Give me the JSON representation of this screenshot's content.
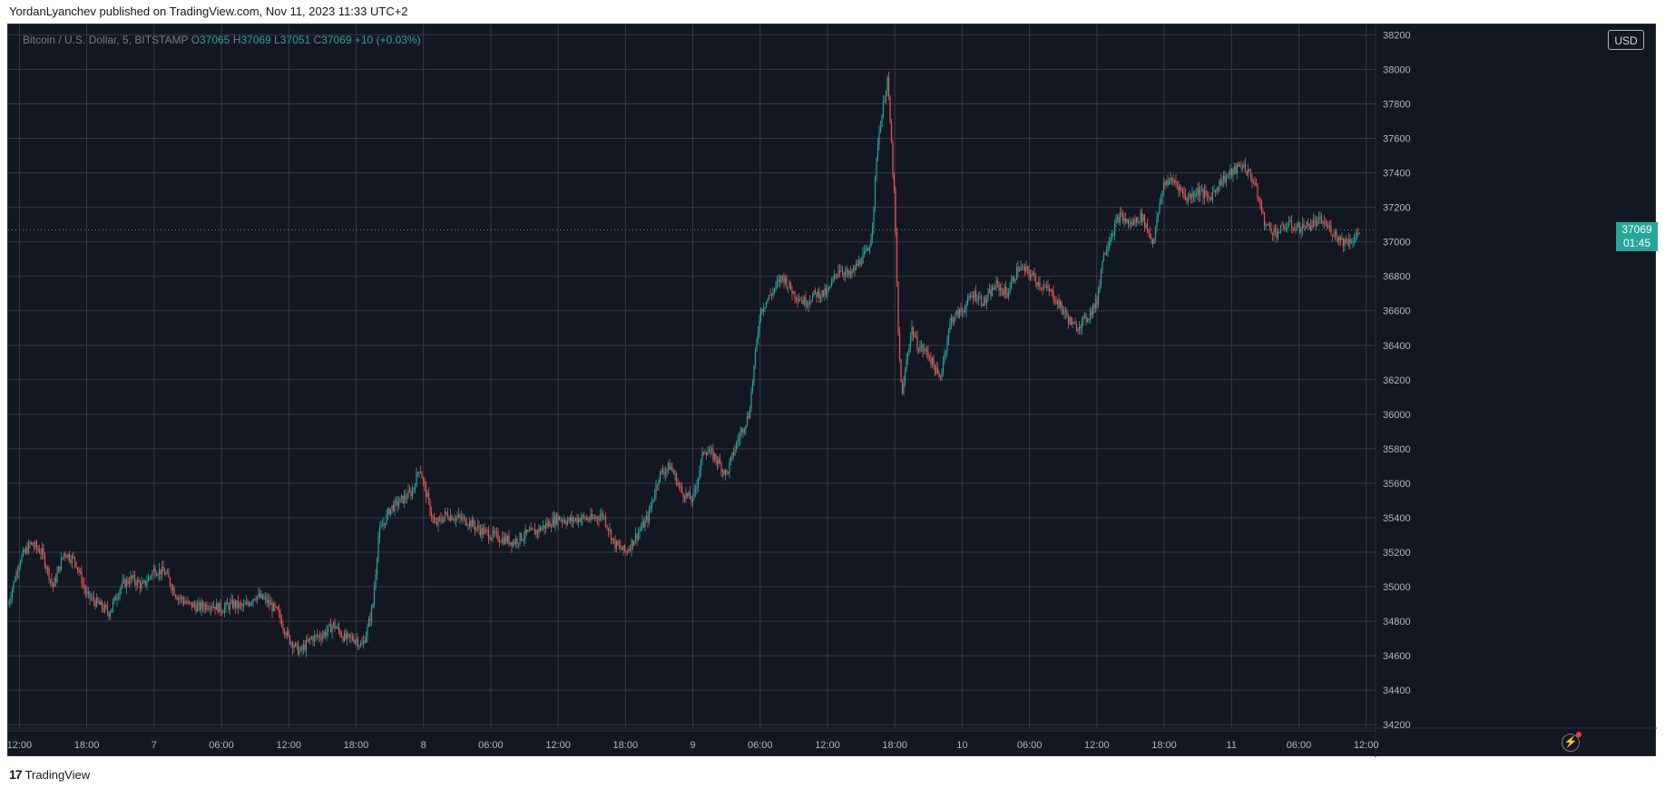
{
  "header": {
    "published_text": "YordanLyanchev published on TradingView.com, Nov 11, 2023 11:33 UTC+2"
  },
  "legend": {
    "symbol": "Bitcoin / U.S. Dollar, 5, BITSTAMP",
    "o_label": "O",
    "o_value": "37065",
    "h_label": "H",
    "h_value": "37069",
    "l_label": "L",
    "l_value": "37051",
    "c_label": "C",
    "c_value": "37069",
    "change": "+10 (+0.03%)"
  },
  "toolbar": {
    "currency": "USD"
  },
  "price_tag": {
    "price": "37069",
    "countdown": "01:45"
  },
  "footer": {
    "logo_mark": "17",
    "brand": "TradingView"
  },
  "colors": {
    "background": "#131722",
    "up": "#26a69a",
    "down": "#ef5350",
    "grid": "#363a45",
    "text": "#b2b5be"
  },
  "icons": {
    "replay": "lightning-bolt-icon"
  },
  "chart_data": {
    "type": "line",
    "title": "Bitcoin / U.S. Dollar, 5, BITSTAMP",
    "interval": "5",
    "exchange": "BITSTAMP",
    "y_range": [
      34180,
      38260
    ],
    "y_ticks": [
      34200,
      34400,
      34600,
      34800,
      35000,
      35200,
      35400,
      35600,
      35800,
      36000,
      36200,
      36400,
      36600,
      36800,
      37000,
      37200,
      37400,
      37600,
      37800,
      38000,
      38200
    ],
    "x_range": [
      "2023-11-06 11:00",
      "2023-11-11 12:50"
    ],
    "x_ticks": [
      {
        "label": "12:00",
        "t": "2023-11-06 12:00"
      },
      {
        "label": "18:00",
        "t": "2023-11-06 18:00"
      },
      {
        "label": "7",
        "t": "2023-11-07 00:00"
      },
      {
        "label": "06:00",
        "t": "2023-11-07 06:00"
      },
      {
        "label": "12:00",
        "t": "2023-11-07 12:00"
      },
      {
        "label": "18:00",
        "t": "2023-11-07 18:00"
      },
      {
        "label": "8",
        "t": "2023-11-08 00:00"
      },
      {
        "label": "06:00",
        "t": "2023-11-08 06:00"
      },
      {
        "label": "12:00",
        "t": "2023-11-08 12:00"
      },
      {
        "label": "18:00",
        "t": "2023-11-08 18:00"
      },
      {
        "label": "9",
        "t": "2023-11-09 00:00"
      },
      {
        "label": "06:00",
        "t": "2023-11-09 06:00"
      },
      {
        "label": "12:00",
        "t": "2023-11-09 12:00"
      },
      {
        "label": "18:00",
        "t": "2023-11-09 18:00"
      },
      {
        "label": "10",
        "t": "2023-11-10 00:00"
      },
      {
        "label": "06:00",
        "t": "2023-11-10 06:00"
      },
      {
        "label": "12:00",
        "t": "2023-11-10 12:00"
      },
      {
        "label": "18:00",
        "t": "2023-11-10 18:00"
      },
      {
        "label": "11",
        "t": "2023-11-11 00:00"
      },
      {
        "label": "06:00",
        "t": "2023-11-11 06:00"
      },
      {
        "label": "12:00",
        "t": "2023-11-11 12:00"
      }
    ],
    "last_price": 37069,
    "series": [
      {
        "points": [
          [
            "2023-11-06 11:00",
            34900
          ],
          [
            "2023-11-06 12:00",
            35150
          ],
          [
            "2023-11-06 13:00",
            35250
          ],
          [
            "2023-11-06 14:00",
            35200
          ],
          [
            "2023-11-06 15:00",
            35000
          ],
          [
            "2023-11-06 16:00",
            35200
          ],
          [
            "2023-11-06 17:00",
            35150
          ],
          [
            "2023-11-06 18:00",
            34950
          ],
          [
            "2023-11-06 19:00",
            34900
          ],
          [
            "2023-11-06 20:00",
            34850
          ],
          [
            "2023-11-06 21:00",
            35000
          ],
          [
            "2023-11-06 22:00",
            35050
          ],
          [
            "2023-11-06 23:00",
            35000
          ],
          [
            "2023-11-07 00:00",
            35100
          ],
          [
            "2023-11-07 01:00",
            35080
          ],
          [
            "2023-11-07 02:00",
            34950
          ],
          [
            "2023-11-07 03:00",
            34900
          ],
          [
            "2023-11-07 04:00",
            34880
          ],
          [
            "2023-11-07 05:00",
            34900
          ],
          [
            "2023-11-07 06:00",
            34870
          ],
          [
            "2023-11-07 07:00",
            34900
          ],
          [
            "2023-11-07 08:00",
            34880
          ],
          [
            "2023-11-07 09:00",
            34950
          ],
          [
            "2023-11-07 10:00",
            34920
          ],
          [
            "2023-11-07 11:00",
            34850
          ],
          [
            "2023-11-07 12:00",
            34700
          ],
          [
            "2023-11-07 13:00",
            34620
          ],
          [
            "2023-11-07 14:00",
            34700
          ],
          [
            "2023-11-07 15:00",
            34720
          ],
          [
            "2023-11-07 16:00",
            34780
          ],
          [
            "2023-11-07 17:00",
            34700
          ],
          [
            "2023-11-07 18:00",
            34700
          ],
          [
            "2023-11-07 18:30",
            34650
          ],
          [
            "2023-11-07 19:00",
            34750
          ],
          [
            "2023-11-07 19:30",
            34900
          ],
          [
            "2023-11-07 20:00",
            35300
          ],
          [
            "2023-11-07 21:00",
            35450
          ],
          [
            "2023-11-07 22:00",
            35500
          ],
          [
            "2023-11-07 23:00",
            35550
          ],
          [
            "2023-11-07 23:40",
            35700
          ],
          [
            "2023-11-08 00:00",
            35600
          ],
          [
            "2023-11-08 01:00",
            35350
          ],
          [
            "2023-11-08 02:00",
            35420
          ],
          [
            "2023-11-08 03:00",
            35400
          ],
          [
            "2023-11-08 04:00",
            35380
          ],
          [
            "2023-11-08 05:00",
            35330
          ],
          [
            "2023-11-08 06:00",
            35300
          ],
          [
            "2023-11-08 07:00",
            35280
          ],
          [
            "2023-11-08 08:00",
            35260
          ],
          [
            "2023-11-08 09:00",
            35300
          ],
          [
            "2023-11-08 10:00",
            35320
          ],
          [
            "2023-11-08 11:00",
            35360
          ],
          [
            "2023-11-08 12:00",
            35400
          ],
          [
            "2023-11-08 13:00",
            35380
          ],
          [
            "2023-11-08 14:00",
            35400
          ],
          [
            "2023-11-08 15:00",
            35390
          ],
          [
            "2023-11-08 16:00",
            35420
          ],
          [
            "2023-11-08 17:00",
            35250
          ],
          [
            "2023-11-08 18:00",
            35200
          ],
          [
            "2023-11-08 19:00",
            35300
          ],
          [
            "2023-11-08 20:00",
            35400
          ],
          [
            "2023-11-08 21:00",
            35650
          ],
          [
            "2023-11-08 22:00",
            35700
          ],
          [
            "2023-11-08 23:00",
            35550
          ],
          [
            "2023-11-09 00:00",
            35500
          ],
          [
            "2023-11-09 01:00",
            35800
          ],
          [
            "2023-11-09 02:00",
            35750
          ],
          [
            "2023-11-09 03:00",
            35650
          ],
          [
            "2023-11-09 04:00",
            35850
          ],
          [
            "2023-11-09 05:00",
            36000
          ],
          [
            "2023-11-09 05:40",
            36400
          ],
          [
            "2023-11-09 06:00",
            36600
          ],
          [
            "2023-11-09 07:00",
            36700
          ],
          [
            "2023-11-09 08:00",
            36800
          ],
          [
            "2023-11-09 09:00",
            36700
          ],
          [
            "2023-11-09 10:00",
            36650
          ],
          [
            "2023-11-09 11:00",
            36700
          ],
          [
            "2023-11-09 12:00",
            36700
          ],
          [
            "2023-11-09 13:00",
            36850
          ],
          [
            "2023-11-09 14:00",
            36800
          ],
          [
            "2023-11-09 15:00",
            36900
          ],
          [
            "2023-11-09 15:40",
            36950
          ],
          [
            "2023-11-09 16:00",
            37100
          ],
          [
            "2023-11-09 16:30",
            37600
          ],
          [
            "2023-11-09 17:00",
            37800
          ],
          [
            "2023-11-09 17:20",
            37950
          ],
          [
            "2023-11-09 17:40",
            37600
          ],
          [
            "2023-11-09 18:00",
            37200
          ],
          [
            "2023-11-09 18:20",
            36400
          ],
          [
            "2023-11-09 18:40",
            36100
          ],
          [
            "2023-11-09 19:00",
            36300
          ],
          [
            "2023-11-09 19:30",
            36500
          ],
          [
            "2023-11-09 20:00",
            36400
          ],
          [
            "2023-11-09 21:00",
            36350
          ],
          [
            "2023-11-09 22:00",
            36200
          ],
          [
            "2023-11-09 23:00",
            36550
          ],
          [
            "2023-11-10 00:00",
            36600
          ],
          [
            "2023-11-10 01:00",
            36700
          ],
          [
            "2023-11-10 02:00",
            36650
          ],
          [
            "2023-11-10 03:00",
            36750
          ],
          [
            "2023-11-10 04:00",
            36700
          ],
          [
            "2023-11-10 05:00",
            36850
          ],
          [
            "2023-11-10 06:00",
            36820
          ],
          [
            "2023-11-10 07:00",
            36750
          ],
          [
            "2023-11-10 08:00",
            36700
          ],
          [
            "2023-11-10 09:00",
            36600
          ],
          [
            "2023-11-10 10:00",
            36500
          ],
          [
            "2023-11-10 11:00",
            36550
          ],
          [
            "2023-11-10 12:00",
            36650
          ],
          [
            "2023-11-10 12:30",
            36900
          ],
          [
            "2023-11-10 13:00",
            37000
          ],
          [
            "2023-11-10 14:00",
            37150
          ],
          [
            "2023-11-10 15:00",
            37100
          ],
          [
            "2023-11-10 16:00",
            37150
          ],
          [
            "2023-11-10 17:00",
            37000
          ],
          [
            "2023-11-10 18:00",
            37350
          ],
          [
            "2023-11-10 19:00",
            37350
          ],
          [
            "2023-11-10 20:00",
            37250
          ],
          [
            "2023-11-10 21:00",
            37300
          ],
          [
            "2023-11-10 22:00",
            37250
          ],
          [
            "2023-11-10 23:00",
            37350
          ],
          [
            "2023-11-11 00:00",
            37400
          ],
          [
            "2023-11-11 01:00",
            37450
          ],
          [
            "2023-11-11 02:00",
            37350
          ],
          [
            "2023-11-11 03:00",
            37100
          ],
          [
            "2023-11-11 04:00",
            37050
          ],
          [
            "2023-11-11 05:00",
            37100
          ],
          [
            "2023-11-11 06:00",
            37080
          ],
          [
            "2023-11-11 07:00",
            37100
          ],
          [
            "2023-11-11 08:00",
            37120
          ],
          [
            "2023-11-11 09:00",
            37060
          ],
          [
            "2023-11-11 10:00",
            37000
          ],
          [
            "2023-11-11 11:00",
            37020
          ],
          [
            "2023-11-11 11:30",
            37069
          ]
        ]
      }
    ]
  }
}
